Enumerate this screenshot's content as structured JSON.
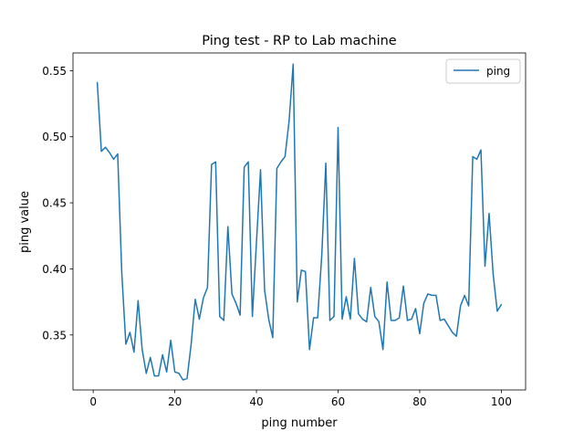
{
  "chart_data": {
    "type": "line",
    "title": "Ping test - RP to Lab machine",
    "xlabel": "ping number",
    "ylabel": "ping value",
    "xlim": [
      -4.95,
      105.95
    ],
    "ylim": [
      0.3084,
      0.5634
    ],
    "x_ticks": [
      0,
      20,
      40,
      60,
      80,
      100
    ],
    "x_tick_labels": [
      "0",
      "20",
      "40",
      "60",
      "80",
      "100"
    ],
    "y_ticks": [
      0.35,
      0.4,
      0.45,
      0.5,
      0.55
    ],
    "y_tick_labels": [
      "0.35",
      "0.40",
      "0.45",
      "0.50",
      "0.55"
    ],
    "grid": false,
    "legend_position": "top-right",
    "colors": {
      "series": "#1f77b4"
    },
    "series": [
      {
        "name": "ping",
        "x": [
          1,
          2,
          3,
          4,
          5,
          6,
          7,
          8,
          9,
          10,
          11,
          12,
          13,
          14,
          15,
          16,
          17,
          18,
          19,
          20,
          21,
          22,
          23,
          24,
          25,
          26,
          27,
          28,
          29,
          30,
          31,
          32,
          33,
          34,
          35,
          36,
          37,
          38,
          39,
          40,
          41,
          42,
          43,
          44,
          45,
          46,
          47,
          48,
          49,
          50,
          51,
          52,
          53,
          54,
          55,
          56,
          57,
          58,
          59,
          60,
          61,
          62,
          63,
          64,
          65,
          66,
          67,
          68,
          69,
          70,
          71,
          72,
          73,
          74,
          75,
          76,
          77,
          78,
          79,
          80,
          81,
          82,
          83,
          84,
          85,
          86,
          87,
          88,
          89,
          90,
          91,
          92,
          93,
          94,
          95,
          96,
          97,
          98,
          99,
          100
        ],
        "values": [
          0.541,
          0.489,
          0.492,
          0.488,
          0.483,
          0.487,
          0.397,
          0.343,
          0.352,
          0.337,
          0.376,
          0.339,
          0.321,
          0.333,
          0.319,
          0.319,
          0.335,
          0.322,
          0.346,
          0.322,
          0.321,
          0.316,
          0.317,
          0.343,
          0.377,
          0.362,
          0.378,
          0.386,
          0.479,
          0.481,
          0.364,
          0.361,
          0.432,
          0.381,
          0.374,
          0.365,
          0.477,
          0.481,
          0.364,
          0.42,
          0.475,
          0.384,
          0.362,
          0.348,
          0.476,
          0.481,
          0.485,
          0.512,
          0.555,
          0.375,
          0.399,
          0.398,
          0.339,
          0.363,
          0.363,
          0.41,
          0.48,
          0.361,
          0.364,
          0.507,
          0.362,
          0.379,
          0.362,
          0.408,
          0.366,
          0.362,
          0.36,
          0.386,
          0.364,
          0.36,
          0.339,
          0.39,
          0.361,
          0.361,
          0.363,
          0.387,
          0.361,
          0.362,
          0.37,
          0.351,
          0.374,
          0.381,
          0.38,
          0.38,
          0.361,
          0.362,
          0.357,
          0.352,
          0.349,
          0.372,
          0.38,
          0.372,
          0.485,
          0.483,
          0.49,
          0.402,
          0.442,
          0.396,
          0.368,
          0.373
        ]
      }
    ]
  }
}
